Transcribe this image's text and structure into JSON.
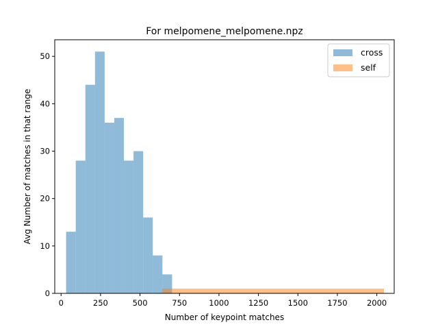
{
  "chart_data": {
    "type": "bar",
    "title": "For melpomene_melpomene.npz",
    "xlabel": "Number of keypoint matches",
    "ylabel": "Avg Number of matches in that range",
    "xlim": [
      -40,
      2110
    ],
    "ylim": [
      0,
      53.5
    ],
    "xticks": [
      0,
      250,
      500,
      750,
      1000,
      1250,
      1500,
      1750,
      2000
    ],
    "xtick_labels": [
      "0",
      "250",
      "500",
      "750",
      "1000",
      "1250",
      "1500",
      "1750",
      "2000"
    ],
    "yticks": [
      0,
      10,
      20,
      30,
      40,
      50
    ],
    "ytick_labels": [
      "0",
      "10",
      "20",
      "30",
      "40",
      "50"
    ],
    "grid": false,
    "legend_position": "top-right",
    "series": [
      {
        "name": "cross",
        "color": "#1f77b4",
        "opacity": 0.5,
        "bin_edges": [
          32,
          93,
          154,
          215,
          276,
          337,
          398,
          459,
          520,
          581,
          642,
          703
        ],
        "values": [
          13,
          28,
          44,
          51,
          36,
          37,
          28,
          30,
          16,
          8,
          4
        ]
      },
      {
        "name": "self",
        "color": "#ff7f0e",
        "opacity": 0.5,
        "bin_edges": [
          640,
          2045
        ],
        "values": [
          1
        ]
      }
    ]
  }
}
